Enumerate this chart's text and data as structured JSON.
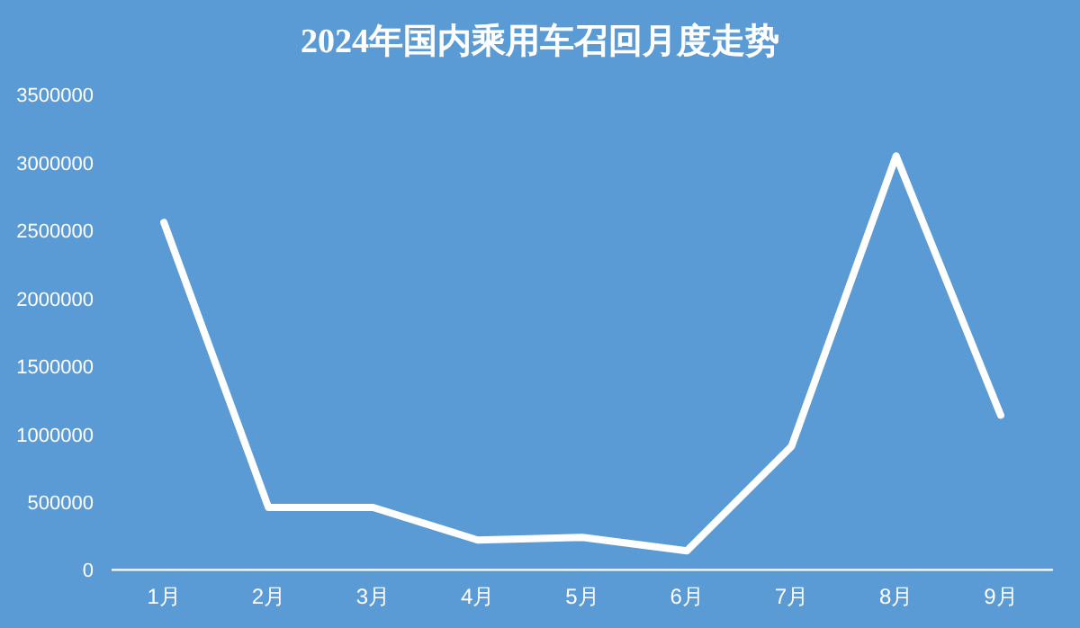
{
  "chart_data": {
    "type": "line",
    "title": "2024年国内乘用车召回月度走势",
    "categories": [
      "1月",
      "2月",
      "3月",
      "4月",
      "5月",
      "6月",
      "7月",
      "8月",
      "9月"
    ],
    "series": [
      {
        "color": "#ffffff",
        "values": [
          2560000,
          460000,
          460000,
          220000,
          240000,
          140000,
          910000,
          3050000,
          1140000
        ]
      }
    ],
    "ylim": [
      0,
      3500000
    ],
    "yticks": [
      0,
      500000,
      1000000,
      1500000,
      2000000,
      2500000,
      3000000,
      3500000
    ],
    "grid": false,
    "marker": "none",
    "line_style": "solid"
  }
}
